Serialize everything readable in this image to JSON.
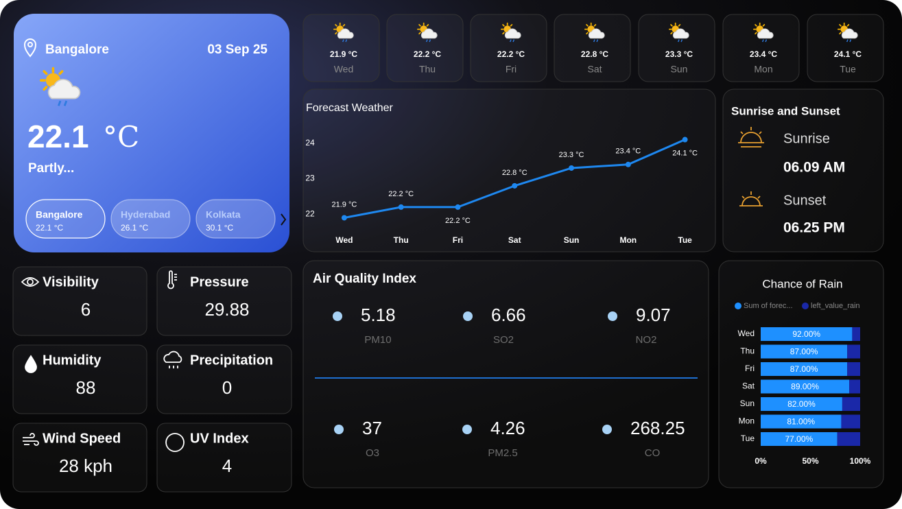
{
  "current": {
    "city": "Bangalore",
    "date": "03 Sep 25",
    "temp": "22.1",
    "unit": "°C",
    "condition": "Partly..."
  },
  "cities": [
    {
      "name": "Bangalore",
      "temp": "22.1 °C"
    },
    {
      "name": "Hyderabad",
      "temp": "26.1 °C"
    },
    {
      "name": "Kolkata",
      "temp": "30.1 °C"
    }
  ],
  "daily": [
    {
      "temp": "21.9 °C",
      "day": "Wed"
    },
    {
      "temp": "22.2 °C",
      "day": "Thu"
    },
    {
      "temp": "22.2 °C",
      "day": "Fri"
    },
    {
      "temp": "22.8 °C",
      "day": "Sat"
    },
    {
      "temp": "23.3 °C",
      "day": "Sun"
    },
    {
      "temp": "23.4 °C",
      "day": "Mon"
    },
    {
      "temp": "24.1 °C",
      "day": "Tue"
    }
  ],
  "forecast_chart": {
    "type": "line",
    "title": "Forecast Weather",
    "categories": [
      "Wed",
      "Thu",
      "Fri",
      "Sat",
      "Sun",
      "Mon",
      "Tue"
    ],
    "values": [
      21.9,
      22.2,
      22.2,
      22.8,
      23.3,
      23.4,
      24.1
    ],
    "value_labels": [
      "21.9 °C",
      "22.2 °C",
      "22.2 °C",
      "22.8 °C",
      "23.3 °C",
      "23.4 °C",
      "24.1 °C"
    ],
    "color": "#1e88f0",
    "ylim": [
      21.6,
      24.4
    ],
    "yticks": [
      22,
      23,
      24
    ]
  },
  "sun": {
    "title": "Sunrise and Sunset",
    "sunrise_label": "Sunrise",
    "sunrise": "06.09 AM",
    "sunset_label": "Sunset",
    "sunset": "06.25 PM"
  },
  "metrics": [
    {
      "label": "Visibility",
      "value": "6"
    },
    {
      "label": "Pressure",
      "value": "29.88"
    },
    {
      "label": "Humidity",
      "value": "88"
    },
    {
      "label": "Precipitation",
      "value": "0"
    },
    {
      "label": "Wind Speed",
      "value": "28 kph"
    },
    {
      "label": "UV Index",
      "value": "4"
    }
  ],
  "aqi": {
    "title": "Air Quality Index",
    "items": [
      {
        "value": "5.18",
        "name": "PM10"
      },
      {
        "value": "6.66",
        "name": "SO2"
      },
      {
        "value": "9.07",
        "name": "NO2"
      },
      {
        "value": "37",
        "name": "O3"
      },
      {
        "value": "4.26",
        "name": "PM2.5"
      },
      {
        "value": "268.25",
        "name": "CO"
      }
    ]
  },
  "rain_chart": {
    "type": "bar",
    "title": "Chance of Rain",
    "categories": [
      "Wed",
      "Thu",
      "Fri",
      "Sat",
      "Sun",
      "Mon",
      "Tue"
    ],
    "series": [
      {
        "name": "Sum of forec...",
        "color": "#1e90ff",
        "values": [
          92,
          87,
          87,
          89,
          82,
          81,
          77
        ],
        "value_labels": [
          "92.00%",
          "87.00%",
          "87.00%",
          "89.00%",
          "82.00%",
          "81.00%",
          "77.00%"
        ]
      },
      {
        "name": "left_value_rain",
        "color": "#1a28a8",
        "values": [
          8,
          13,
          13,
          11,
          18,
          19,
          23
        ]
      }
    ],
    "xlim": [
      0,
      100
    ],
    "xticks": [
      {
        "value": 0,
        "label": "0%"
      },
      {
        "value": 50,
        "label": "50%"
      },
      {
        "value": 100,
        "label": "100%"
      }
    ]
  }
}
